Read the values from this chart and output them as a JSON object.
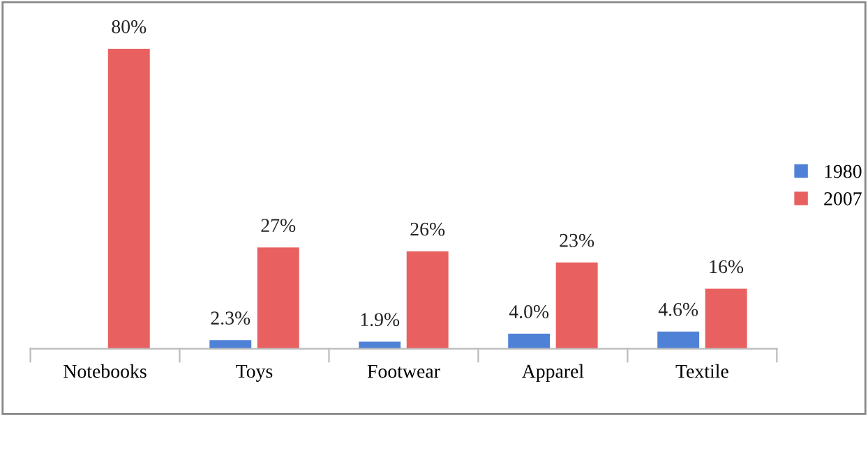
{
  "chart_data": {
    "type": "bar",
    "categories": [
      "Notebooks",
      "Toys",
      "Footwear",
      "Apparel",
      "Textile"
    ],
    "series": [
      {
        "name": "1980",
        "color": "#4f81d6",
        "values": [
          null,
          2.3,
          1.9,
          4.0,
          4.6
        ],
        "value_labels": [
          null,
          "2.3%",
          "1.9%",
          "4.0%",
          "4.6%"
        ]
      },
      {
        "name": "2007",
        "color": "#e8605f",
        "values": [
          80,
          27,
          26,
          23,
          16
        ],
        "value_labels": [
          "80%",
          "27%",
          "26%",
          "23%",
          "16%"
        ]
      }
    ],
    "legend": "right",
    "grid": false
  }
}
